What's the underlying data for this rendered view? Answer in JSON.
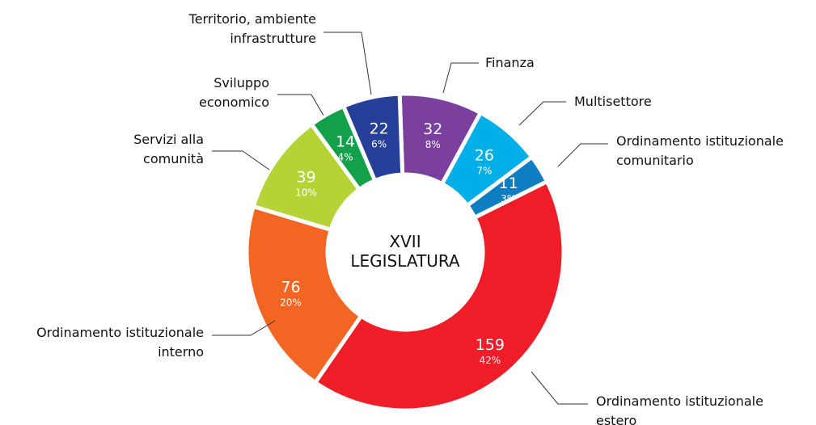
{
  "chart_data": {
    "type": "donut",
    "center_text": "XVII\nLEGISLATURA",
    "categories": [
      "Finanza",
      "Multisettore",
      "Ordinamento istituzionale\ncomunitario",
      "Ordinamento istituzionale\nestero",
      "Ordinamento istituzionale\ninterno",
      "Servizi alla\ncomunità",
      "Sviluppo\neconomico",
      "Territorio, ambiente\ninfrastrutture"
    ],
    "values": [
      32,
      26,
      11,
      159,
      76,
      39,
      14,
      22
    ],
    "percent_labels": [
      "8%",
      "7%",
      "3%",
      "42%",
      "20%",
      "10%",
      "4%",
      "6%"
    ],
    "colors": [
      "#7b3f9e",
      "#00aee8",
      "#0f7dc2",
      "#ee1d27",
      "#f26522",
      "#b5d334",
      "#12a14a",
      "#263f98"
    ]
  }
}
